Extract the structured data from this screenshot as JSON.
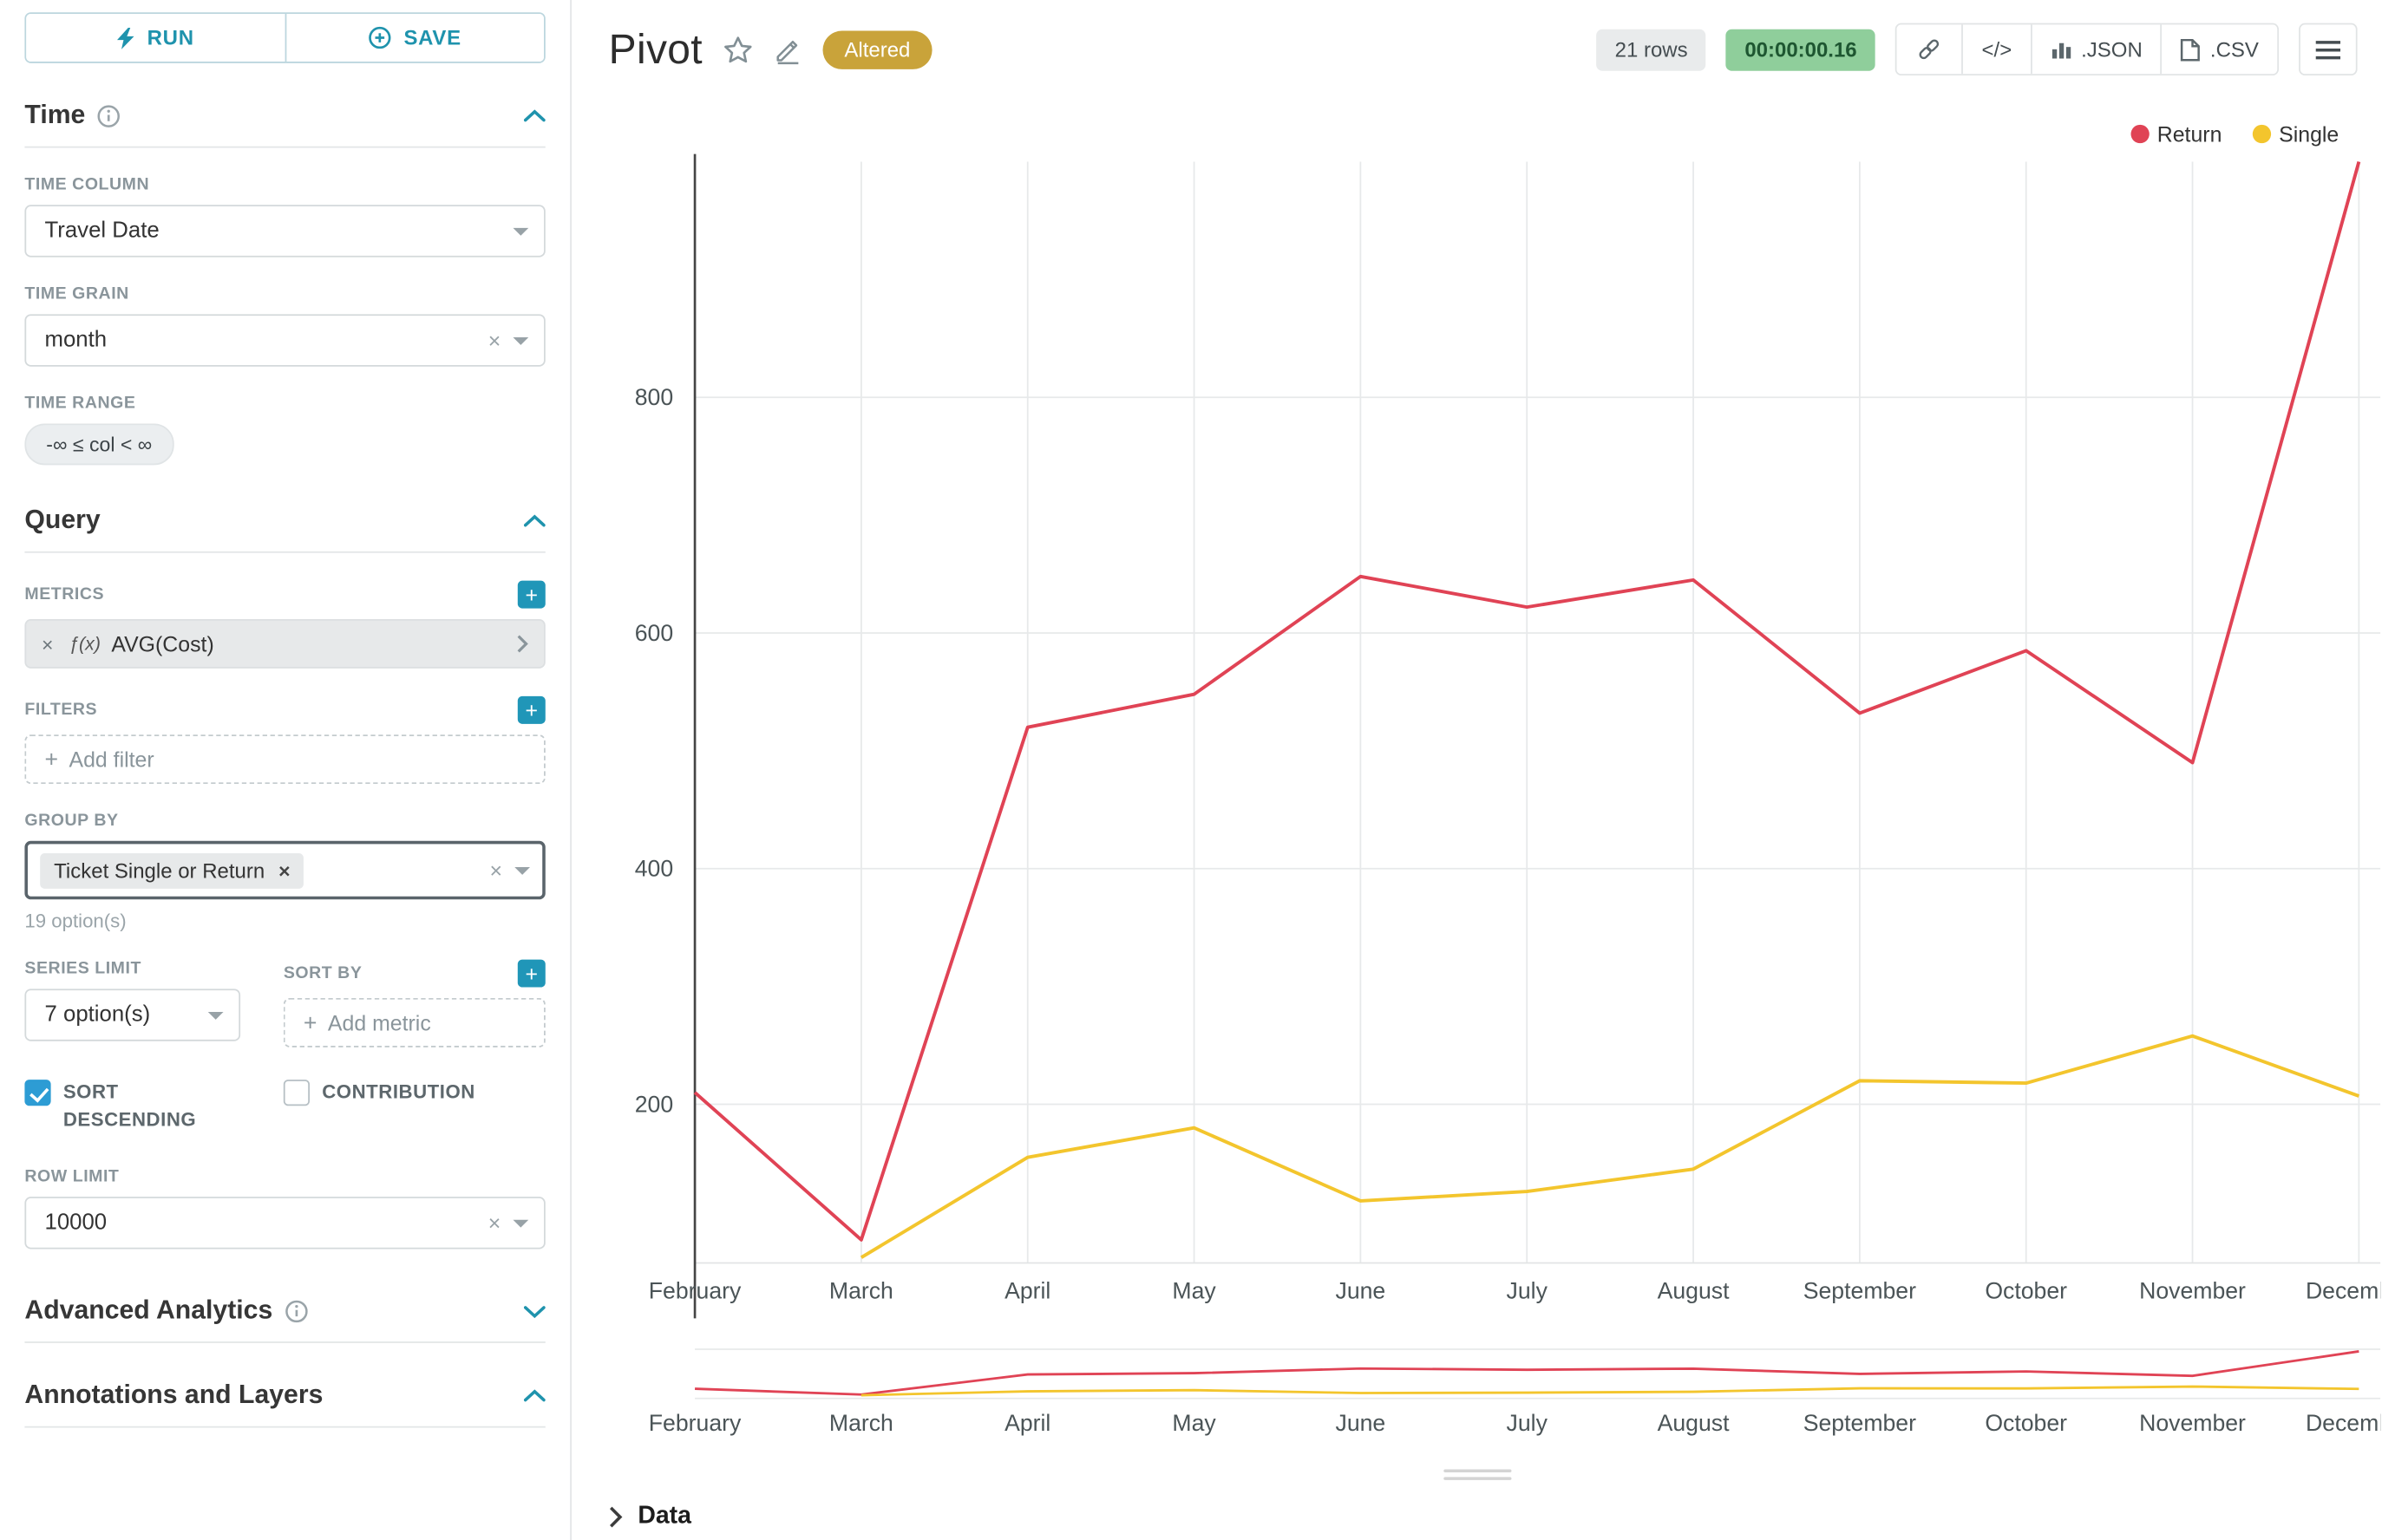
{
  "colors": {
    "accent": "#1f93ad",
    "altered_badge_bg": "#c9a33a",
    "timer_pill_bg": "#8fce9b",
    "series_return": "#e04355",
    "series_single": "#f3c52d"
  },
  "actions": {
    "run": "RUN",
    "save": "SAVE"
  },
  "sidebar": {
    "time": {
      "title": "Time",
      "time_column_label": "TIME COLUMN",
      "time_column_value": "Travel Date",
      "time_grain_label": "TIME GRAIN",
      "time_grain_value": "month",
      "time_range_label": "TIME RANGE",
      "time_range_value": "-∞ ≤ col < ∞"
    },
    "query": {
      "title": "Query",
      "metrics_label": "METRICS",
      "metric_fx": "ƒ(x)",
      "metric_value": "AVG(Cost)",
      "filters_label": "FILTERS",
      "add_filter": "Add filter",
      "group_by_label": "GROUP BY",
      "group_by_chip": "Ticket Single or Return",
      "group_by_hint": "19 option(s)",
      "series_limit_label": "SERIES LIMIT",
      "series_limit_value": "7 option(s)",
      "sort_by_label": "SORT BY",
      "add_metric": "Add metric",
      "sort_descending_label": "SORT DESCENDING",
      "sort_descending_checked": true,
      "contribution_label": "CONTRIBUTION",
      "contribution_checked": false,
      "row_limit_label": "ROW LIMIT",
      "row_limit_value": "10000"
    },
    "advanced_analytics_title": "Advanced Analytics",
    "annotations_title": "Annotations and Layers"
  },
  "header": {
    "title": "Pivot",
    "badge": "Altered",
    "row_count": "21 rows",
    "timer": "00:00:00.16",
    "code_button": "</>",
    "json_button": ".JSON",
    "csv_button": ".CSV"
  },
  "footer": {
    "data_label": "Data"
  },
  "chart_data": {
    "type": "line",
    "title": "Pivot",
    "x": [
      "February",
      "March",
      "April",
      "May",
      "June",
      "July",
      "August",
      "September",
      "October",
      "November",
      "December"
    ],
    "series": [
      {
        "name": "Return",
        "color": "#e04355",
        "values": [
          210,
          85,
          520,
          548,
          648,
          622,
          645,
          532,
          585,
          490,
          1020
        ]
      },
      {
        "name": "Single",
        "color": "#f3c52d",
        "values": [
          null,
          70,
          155,
          180,
          118,
          126,
          145,
          220,
          218,
          258,
          207
        ]
      }
    ],
    "yticks": [
      200,
      400,
      600,
      800
    ],
    "ylim": [
      65,
      1000
    ],
    "xlabel": "",
    "ylabel": "",
    "grid": true,
    "legend_position": "top-right",
    "has_range_selector": true
  }
}
